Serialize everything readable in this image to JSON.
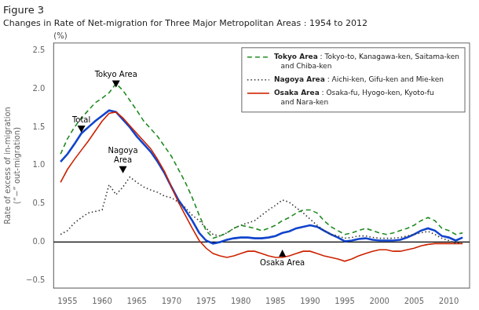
{
  "chart_data": {
    "type": "line",
    "title": "Figure 3",
    "subtitle": "Changes in Rate of Net-migration for Three Major Metropolitan Areas : 1954 to 2012",
    "ylabel": "Rate of excess of in-migration\n(“−” out-migration)",
    "unit_label": "(%)",
    "xlim": [
      1953,
      2013
    ],
    "ylim": [
      -0.6,
      2.6
    ],
    "xticks": [
      1955,
      1960,
      1965,
      1970,
      1975,
      1980,
      1985,
      1990,
      1995,
      2000,
      2005,
      2010
    ],
    "yticks": [
      {
        "value": -0.5,
        "label": "−0.5"
      },
      {
        "value": 0,
        "label": "0.0"
      },
      0.5,
      {
        "value": 1,
        "label": "1.0"
      },
      1.5,
      {
        "value": 2,
        "label": "2.0"
      },
      2.5
    ],
    "grid": false,
    "legend": "upper right",
    "hline": 0,
    "x": [
      1954,
      1955,
      1956,
      1957,
      1958,
      1959,
      1960,
      1961,
      1962,
      1963,
      1964,
      1965,
      1966,
      1967,
      1968,
      1969,
      1970,
      1971,
      1972,
      1973,
      1974,
      1975,
      1976,
      1977,
      1978,
      1979,
      1980,
      1981,
      1982,
      1983,
      1984,
      1985,
      1986,
      1987,
      1988,
      1989,
      1990,
      1991,
      1992,
      1993,
      1994,
      1995,
      1996,
      1997,
      1998,
      1999,
      2000,
      2001,
      2002,
      2003,
      2004,
      2005,
      2006,
      2007,
      2008,
      2009,
      2010,
      2011,
      2012
    ],
    "series": [
      {
        "name": "Tokyo Area : Tokyo-to, Kanagawa-ken, Saitama-ken\nand Chiba-ken",
        "color": "#228B22",
        "line_style": "dashed",
        "values": [
          1.15,
          1.35,
          1.5,
          1.62,
          1.72,
          1.82,
          1.88,
          1.95,
          2.07,
          1.98,
          1.85,
          1.72,
          1.58,
          1.48,
          1.38,
          1.25,
          1.12,
          0.95,
          0.78,
          0.58,
          0.35,
          0.15,
          0.05,
          0.08,
          0.12,
          0.18,
          0.22,
          0.2,
          0.18,
          0.15,
          0.18,
          0.22,
          0.28,
          0.32,
          0.38,
          0.42,
          0.42,
          0.38,
          0.28,
          0.2,
          0.15,
          0.1,
          0.12,
          0.15,
          0.18,
          0.15,
          0.12,
          0.1,
          0.12,
          0.15,
          0.18,
          0.22,
          0.28,
          0.32,
          0.28,
          0.18,
          0.15,
          0.1,
          0.12
        ]
      },
      {
        "name": "Nagoya Area : Aichi-ken, Gifu-ken and Mie-ken",
        "color": "#333333",
        "line_style": "dotted",
        "values": [
          0.1,
          0.15,
          0.25,
          0.32,
          0.38,
          0.4,
          0.42,
          0.75,
          0.62,
          0.72,
          0.85,
          0.78,
          0.72,
          0.68,
          0.65,
          0.6,
          0.58,
          0.52,
          0.45,
          0.35,
          0.28,
          0.18,
          0.1,
          0.08,
          0.12,
          0.18,
          0.22,
          0.25,
          0.28,
          0.35,
          0.42,
          0.48,
          0.55,
          0.52,
          0.45,
          0.38,
          0.3,
          0.22,
          0.15,
          0.1,
          0.08,
          0.05,
          0.06,
          0.08,
          0.08,
          0.06,
          0.05,
          0.05,
          0.05,
          0.06,
          0.08,
          0.1,
          0.12,
          0.14,
          0.1,
          0.05,
          0.02,
          -0.02,
          0.0
        ]
      },
      {
        "name": "Osaka Area : Osaka-fu, Hyogo-ken, Kyoto-fu\nand Nara-ken",
        "color": "#cc2200",
        "line_style": "solid",
        "values": [
          0.78,
          0.95,
          1.08,
          1.2,
          1.32,
          1.45,
          1.58,
          1.68,
          1.7,
          1.62,
          1.52,
          1.42,
          1.32,
          1.22,
          1.08,
          0.92,
          0.72,
          0.52,
          0.35,
          0.18,
          0.02,
          -0.08,
          -0.15,
          -0.18,
          -0.2,
          -0.18,
          -0.15,
          -0.12,
          -0.12,
          -0.15,
          -0.18,
          -0.2,
          -0.2,
          -0.18,
          -0.15,
          -0.12,
          -0.12,
          -0.15,
          -0.18,
          -0.2,
          -0.22,
          -0.25,
          -0.22,
          -0.18,
          -0.15,
          -0.12,
          -0.1,
          -0.1,
          -0.12,
          -0.12,
          -0.1,
          -0.08,
          -0.05,
          -0.03,
          -0.02,
          -0.02,
          -0.02,
          -0.02,
          -0.02
        ]
      },
      {
        "color": "#1144cc",
        "line_style": "solid",
        "values": [
          1.05,
          1.15,
          1.28,
          1.42,
          1.5,
          1.58,
          1.65,
          1.72,
          1.7,
          1.6,
          1.5,
          1.38,
          1.28,
          1.18,
          1.05,
          0.9,
          0.72,
          0.55,
          0.42,
          0.28,
          0.12,
          0.02,
          -0.02,
          0.0,
          0.03,
          0.05,
          0.06,
          0.06,
          0.05,
          0.05,
          0.06,
          0.08,
          0.12,
          0.14,
          0.18,
          0.2,
          0.22,
          0.2,
          0.15,
          0.1,
          0.06,
          0.01,
          0.02,
          0.04,
          0.05,
          0.03,
          0.02,
          0.02,
          0.02,
          0.03,
          0.06,
          0.1,
          0.15,
          0.18,
          0.15,
          0.08,
          0.06,
          0.02,
          0.06
        ]
      }
    ],
    "annotations": [
      {
        "text": "Tokyo Area",
        "x": 1962,
        "y": 2.07,
        "marker": "triangle_down"
      },
      {
        "text": "Total",
        "x": 1957,
        "y": 1.48,
        "marker": "triangle_down"
      },
      {
        "text": "Nagoya\nArea",
        "x": 1963,
        "y": 0.95,
        "marker": "triangle_down"
      },
      {
        "text": "Osaka Area",
        "x": 1986,
        "y": -0.15,
        "marker": "triangle_up"
      }
    ]
  }
}
